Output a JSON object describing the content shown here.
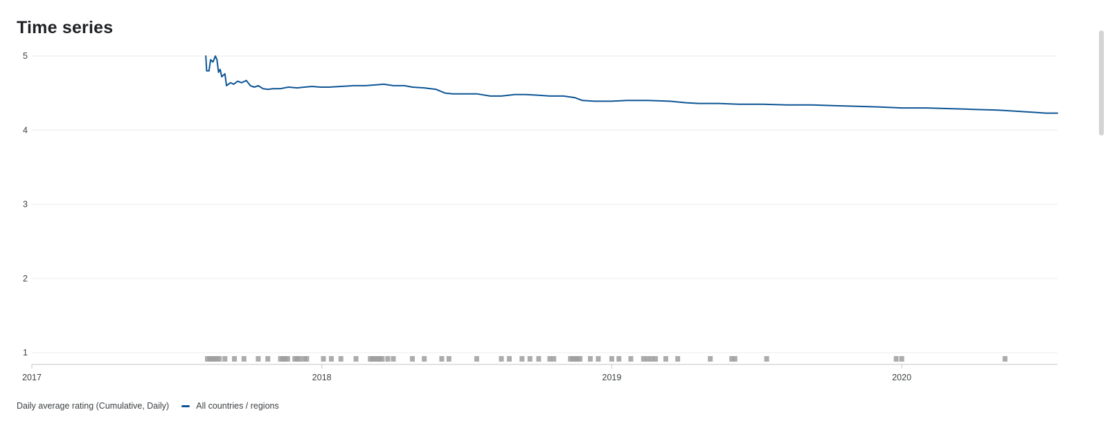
{
  "title": "Time series",
  "legend": {
    "metric_label": "Daily average rating (Cumulative, Daily)",
    "series_label": "All countries / regions"
  },
  "colors": {
    "series": "#0b5394",
    "grid": "#ebebeb",
    "axis": "#c6c6c6",
    "event_marker": "#9e9e9e"
  },
  "chart_data": {
    "type": "line",
    "title": "Time series",
    "xlabel": "",
    "ylabel": "",
    "x_ticks": [
      "2017",
      "2018",
      "2019",
      "2020"
    ],
    "y_ticks": [
      "1",
      "2",
      "3",
      "4",
      "5"
    ],
    "xlim": [
      "2017-01-01",
      "2020-07-15"
    ],
    "ylim": [
      0.85,
      5
    ],
    "grid": true,
    "legend": "bottom-left",
    "series": [
      {
        "name": "All countries / regions",
        "points": [
          [
            "2017-08-08",
            5.0
          ],
          [
            "2017-08-09",
            4.8
          ],
          [
            "2017-08-12",
            4.8
          ],
          [
            "2017-08-14",
            4.95
          ],
          [
            "2017-08-17",
            4.92
          ],
          [
            "2017-08-20",
            5.0
          ],
          [
            "2017-08-22",
            4.95
          ],
          [
            "2017-08-24",
            4.78
          ],
          [
            "2017-08-26",
            4.82
          ],
          [
            "2017-08-28",
            4.72
          ],
          [
            "2017-09-01",
            4.76
          ],
          [
            "2017-09-03",
            4.6
          ],
          [
            "2017-09-08",
            4.64
          ],
          [
            "2017-09-12",
            4.62
          ],
          [
            "2017-09-17",
            4.66
          ],
          [
            "2017-09-22",
            4.64
          ],
          [
            "2017-09-28",
            4.67
          ],
          [
            "2017-10-03",
            4.6
          ],
          [
            "2017-10-08",
            4.58
          ],
          [
            "2017-10-13",
            4.6
          ],
          [
            "2017-10-19",
            4.56
          ],
          [
            "2017-10-25",
            4.55
          ],
          [
            "2017-11-01",
            4.56
          ],
          [
            "2017-11-10",
            4.56
          ],
          [
            "2017-11-20",
            4.58
          ],
          [
            "2017-12-01",
            4.57
          ],
          [
            "2017-12-10",
            4.58
          ],
          [
            "2017-12-20",
            4.59
          ],
          [
            "2017-12-30",
            4.58
          ],
          [
            "2018-01-10",
            4.58
          ],
          [
            "2018-01-25",
            4.59
          ],
          [
            "2018-02-10",
            4.6
          ],
          [
            "2018-02-25",
            4.6
          ],
          [
            "2018-03-10",
            4.61
          ],
          [
            "2018-03-20",
            4.62
          ],
          [
            "2018-04-01",
            4.6
          ],
          [
            "2018-04-15",
            4.6
          ],
          [
            "2018-04-25",
            4.58
          ],
          [
            "2018-05-10",
            4.57
          ],
          [
            "2018-05-25",
            4.55
          ],
          [
            "2018-06-05",
            4.5
          ],
          [
            "2018-06-15",
            4.49
          ],
          [
            "2018-07-01",
            4.49
          ],
          [
            "2018-07-15",
            4.49
          ],
          [
            "2018-08-01",
            4.46
          ],
          [
            "2018-08-15",
            4.46
          ],
          [
            "2018-09-01",
            4.48
          ],
          [
            "2018-09-15",
            4.48
          ],
          [
            "2018-10-01",
            4.47
          ],
          [
            "2018-10-15",
            4.46
          ],
          [
            "2018-11-01",
            4.46
          ],
          [
            "2018-11-15",
            4.44
          ],
          [
            "2018-11-25",
            4.4
          ],
          [
            "2018-12-10",
            4.39
          ],
          [
            "2018-12-31",
            4.39
          ],
          [
            "2019-01-20",
            4.4
          ],
          [
            "2019-02-15",
            4.4
          ],
          [
            "2019-03-15",
            4.39
          ],
          [
            "2019-04-05",
            4.37
          ],
          [
            "2019-04-20",
            4.36
          ],
          [
            "2019-05-15",
            4.36
          ],
          [
            "2019-06-10",
            4.35
          ],
          [
            "2019-07-10",
            4.35
          ],
          [
            "2019-08-10",
            4.34
          ],
          [
            "2019-09-10",
            4.34
          ],
          [
            "2019-10-10",
            4.33
          ],
          [
            "2019-11-10",
            4.32
          ],
          [
            "2019-12-10",
            4.31
          ],
          [
            "2020-01-01",
            4.3
          ],
          [
            "2020-02-01",
            4.3
          ],
          [
            "2020-03-01",
            4.29
          ],
          [
            "2020-04-01",
            4.28
          ],
          [
            "2020-05-01",
            4.27
          ],
          [
            "2020-06-01",
            4.25
          ],
          [
            "2020-07-01",
            4.23
          ],
          [
            "2020-07-15",
            4.23
          ]
        ]
      }
    ]
  },
  "event_markers": [
    "2017-08-10",
    "2017-08-13",
    "2017-08-16",
    "2017-08-19",
    "2017-08-22",
    "2017-08-25",
    "2017-09-01",
    "2017-09-13",
    "2017-09-25",
    "2017-10-13",
    "2017-10-25",
    "2017-11-10",
    "2017-11-13",
    "2017-11-16",
    "2017-11-19",
    "2017-11-28",
    "2017-12-01",
    "2017-12-04",
    "2017-12-10",
    "2017-12-13",
    "2018-01-03",
    "2018-01-13",
    "2018-01-25",
    "2018-02-13",
    "2018-03-03",
    "2018-03-06",
    "2018-03-09",
    "2018-03-12",
    "2018-03-15",
    "2018-03-18",
    "2018-03-25",
    "2018-04-01",
    "2018-04-25",
    "2018-05-10",
    "2018-06-01",
    "2018-06-10",
    "2018-07-15",
    "2018-08-15",
    "2018-08-25",
    "2018-09-10",
    "2018-09-20",
    "2018-10-01",
    "2018-10-15",
    "2018-10-20",
    "2018-11-10",
    "2018-11-13",
    "2018-11-16",
    "2018-11-19",
    "2018-11-22",
    "2018-12-05",
    "2018-12-15",
    "2019-01-01",
    "2019-01-10",
    "2019-01-25",
    "2019-02-10",
    "2019-02-15",
    "2019-02-20",
    "2019-02-25",
    "2019-03-10",
    "2019-03-25",
    "2019-05-05",
    "2019-06-01",
    "2019-06-05",
    "2019-07-15",
    "2019-12-25",
    "2020-01-01",
    "2020-05-10"
  ]
}
